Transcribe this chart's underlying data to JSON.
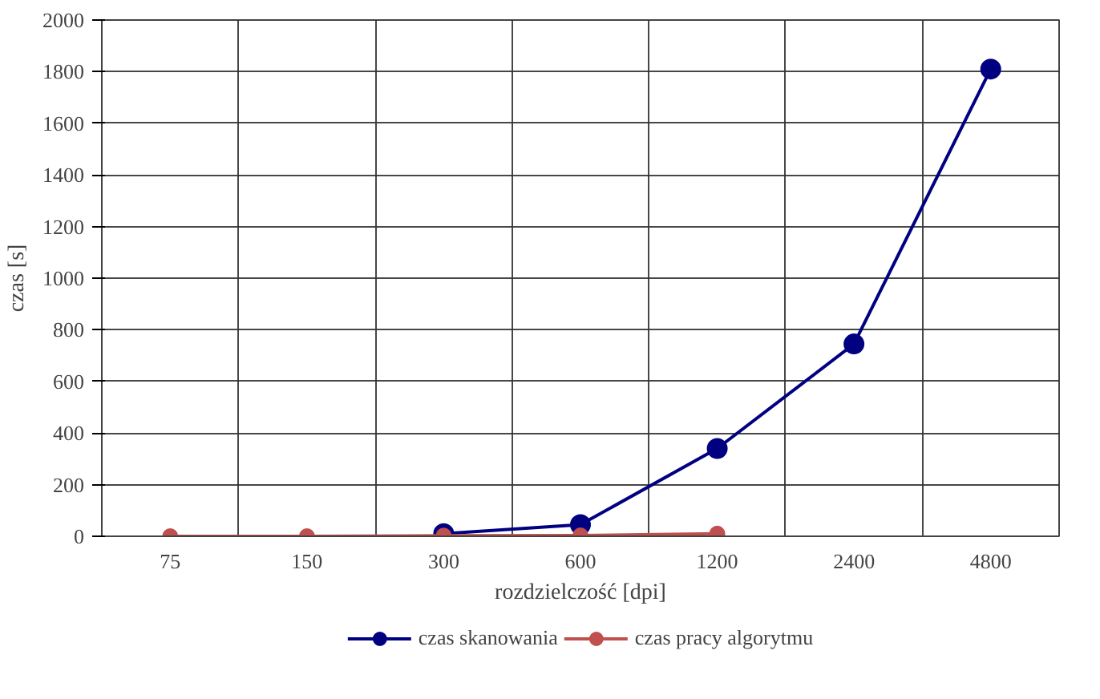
{
  "chart_data": {
    "type": "line",
    "xlabel": "rozdzielczość [dpi]",
    "ylabel": "czas [s]",
    "categories": [
      "75",
      "150",
      "300",
      "600",
      "1200",
      "2400",
      "4800"
    ],
    "series": [
      {
        "name": "czas skanowania",
        "color": "#000080",
        "values": [
          null,
          null,
          10,
          45,
          340,
          745,
          1810
        ]
      },
      {
        "name": "czas pracy algorytmu",
        "color": "#c0504d",
        "values": [
          0,
          0,
          2,
          3,
          10,
          null,
          null
        ]
      }
    ],
    "ylim": [
      0,
      2000
    ],
    "yticks": [
      0,
      200,
      400,
      600,
      800,
      1000,
      1200,
      1400,
      1600,
      1800,
      2000
    ],
    "grid": true,
    "legend": "bottom",
    "marker": "circle",
    "line_style": "solid"
  }
}
